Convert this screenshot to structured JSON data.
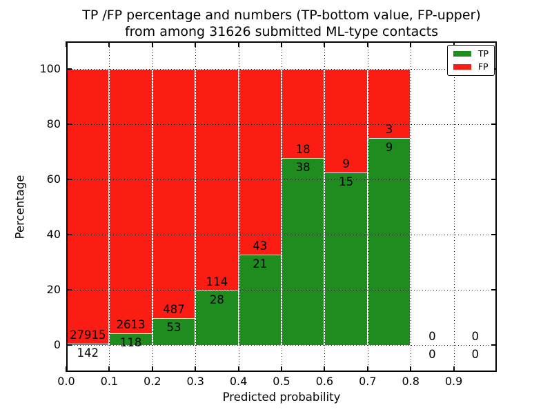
{
  "chart_data": {
    "type": "bar",
    "stacked": true,
    "normalized_to_percent": true,
    "title": "TP /FP percentage and numbers (TP-bottom value, FP-upper)",
    "subtitle": "from among 31626 submitted ML-type contacts",
    "xlabel": "Predicted probability",
    "ylabel": "Percentage",
    "x_tick_labels": [
      "0.0",
      "0.1",
      "0.2",
      "0.3",
      "0.4",
      "0.5",
      "0.6",
      "0.7",
      "0.8",
      "0.9"
    ],
    "y_tick_values": [
      0,
      20,
      40,
      60,
      80,
      100
    ],
    "xlim": [
      0.0,
      1.0
    ],
    "ylim": [
      -9.75,
      110.0
    ],
    "bin_starts": [
      0.0,
      0.1,
      0.2,
      0.3,
      0.4,
      0.5,
      0.6,
      0.7,
      0.8,
      0.9
    ],
    "bin_width": 0.1,
    "grid": true,
    "series": [
      {
        "name": "TP",
        "color": "#1e8c1e",
        "counts": [
          142,
          118,
          53,
          28,
          21,
          38,
          15,
          9,
          0,
          0
        ]
      },
      {
        "name": "FP",
        "color": "#fb1c13",
        "counts": [
          27915,
          2613,
          487,
          114,
          43,
          18,
          9,
          3,
          0,
          0
        ]
      }
    ],
    "tp_percent_heights": [
      0.51,
      4.32,
      9.81,
      19.72,
      32.81,
      67.86,
      62.5,
      75.0,
      0,
      0
    ],
    "legend": {
      "position": "upper right",
      "entries": [
        {
          "label": "TP",
          "color": "#1e8c1e"
        },
        {
          "label": "FP",
          "color": "#fb1c13"
        }
      ]
    },
    "colors": {
      "axis": "#000000",
      "background": "#ffffff",
      "bar_edge": "#ffffff"
    }
  }
}
